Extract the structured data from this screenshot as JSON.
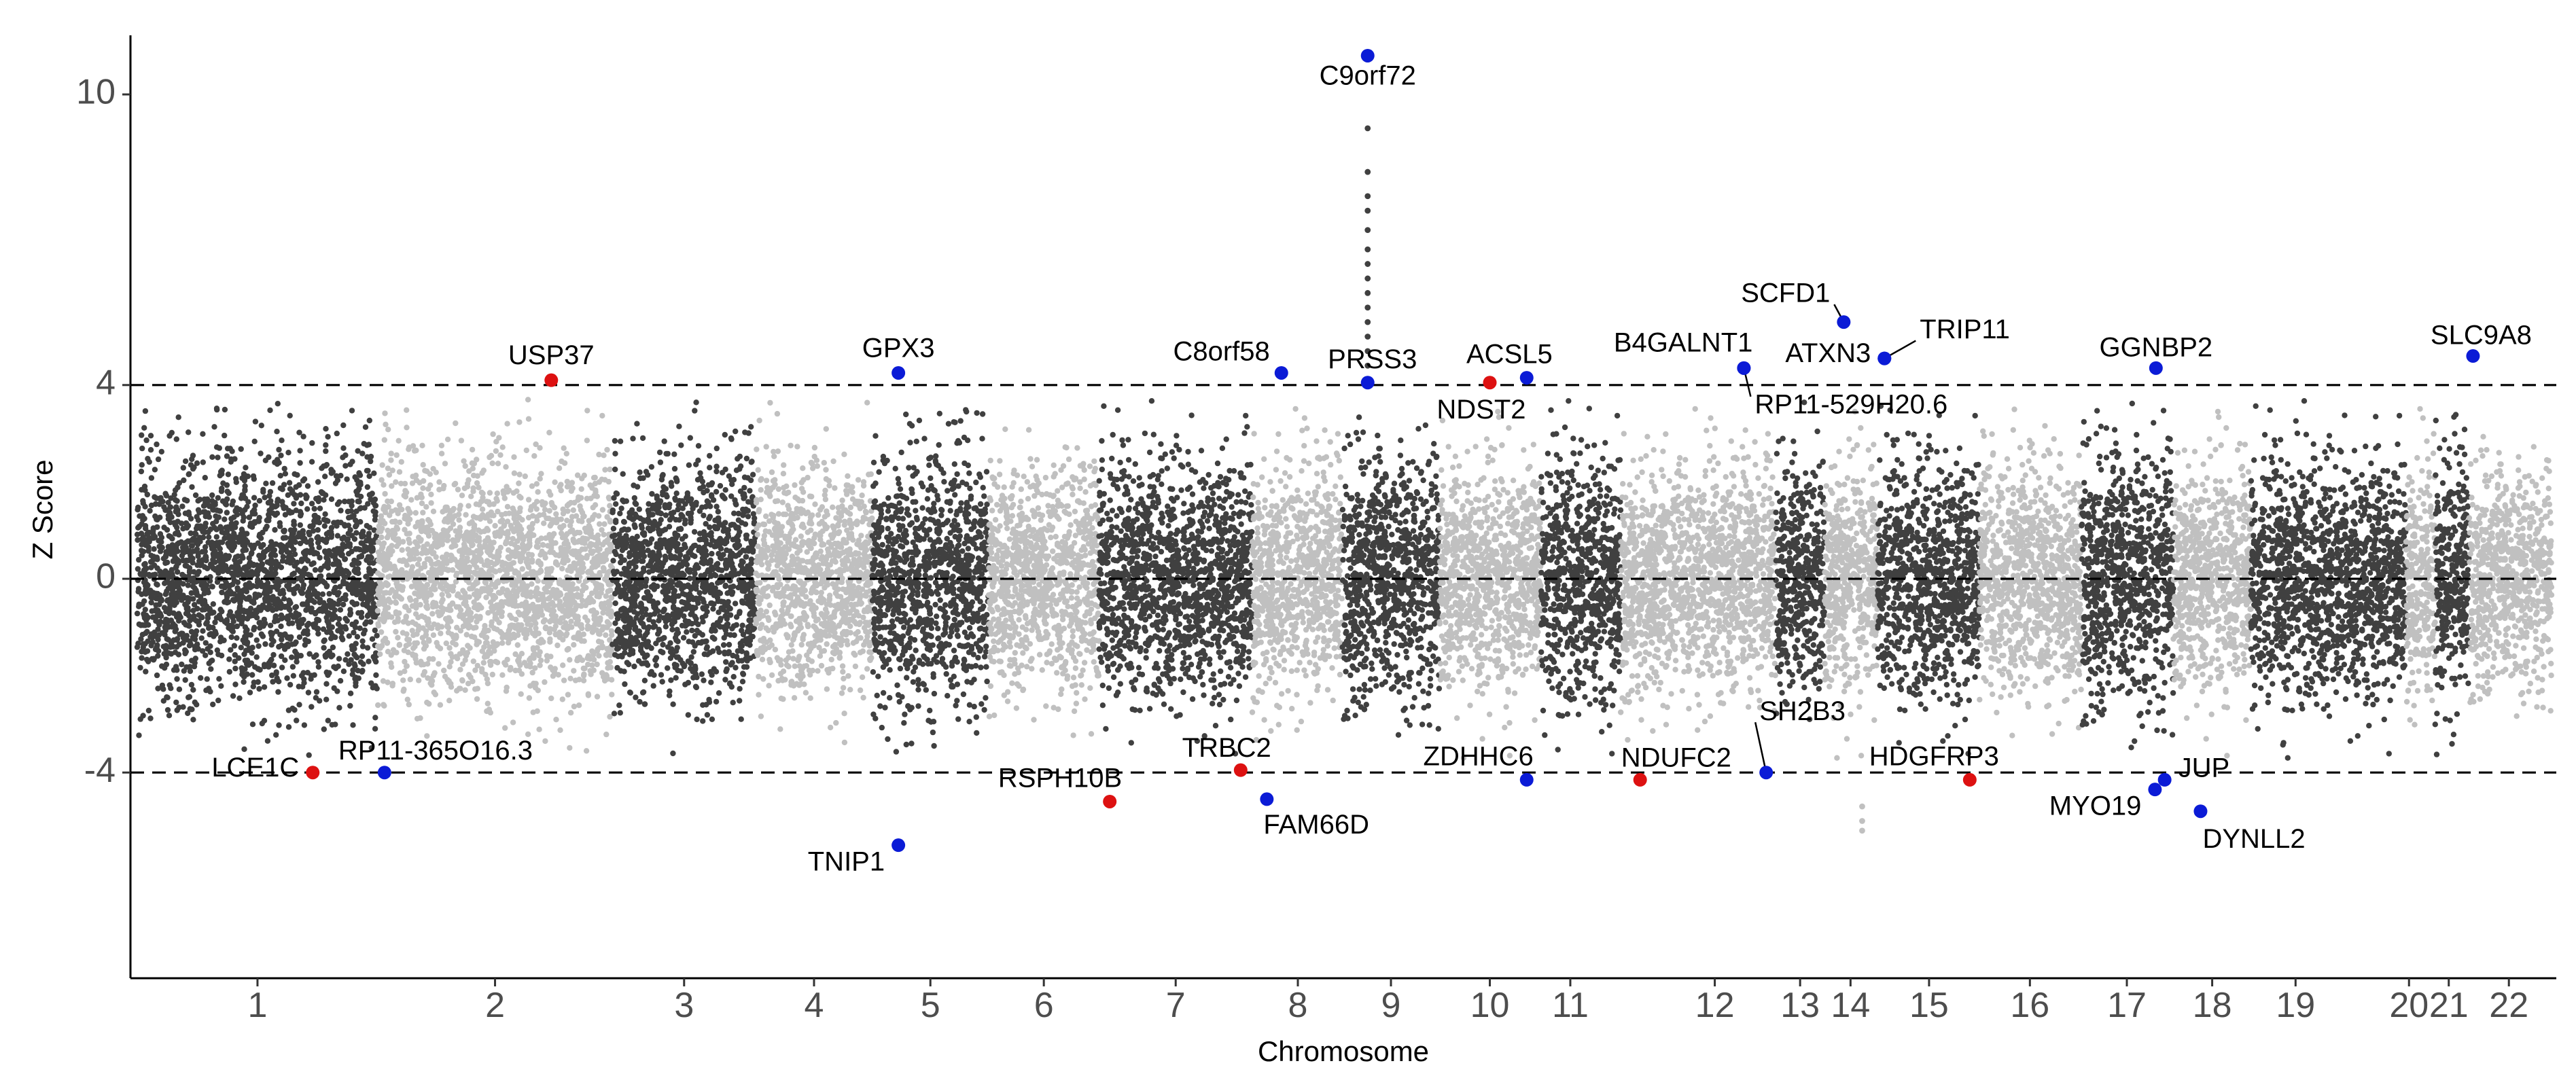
{
  "chart_data": {
    "type": "scatter",
    "subtype": "manhattan",
    "title": "",
    "xlabel": "Chromosome",
    "ylabel": "Z Score",
    "ylim": [
      -8,
      11.5
    ],
    "yticks": [
      -4,
      0,
      4,
      10
    ],
    "threshold_lines": [
      4,
      0,
      -4
    ],
    "grid": false,
    "colors": {
      "dark": "#404040",
      "light": "#c0c0c0",
      "highlight_red": "#dd1111",
      "highlight_blue": "#0b1bd6",
      "threshold": "#000000"
    },
    "chromosomes": [
      {
        "label": "1",
        "start": 0,
        "end": 248,
        "tick": 124,
        "shade": "dark",
        "spread": 1.25
      },
      {
        "label": "2",
        "start": 248,
        "end": 490,
        "tick": 369,
        "shade": "light",
        "spread": 1.15
      },
      {
        "label": "3",
        "start": 490,
        "end": 638,
        "tick": 564,
        "shade": "dark",
        "spread": 1.2
      },
      {
        "label": "4",
        "start": 638,
        "end": 758,
        "tick": 698,
        "shade": "light",
        "spread": 1.1
      },
      {
        "label": "5",
        "start": 758,
        "end": 878,
        "tick": 818,
        "shade": "dark",
        "spread": 1.25
      },
      {
        "label": "6",
        "start": 878,
        "end": 992,
        "tick": 935,
        "shade": "light",
        "spread": 1.1
      },
      {
        "label": "7",
        "start": 992,
        "end": 1150,
        "tick": 1071,
        "shade": "dark",
        "spread": 1.2
      },
      {
        "label": "8",
        "start": 1150,
        "end": 1243,
        "tick": 1197,
        "shade": "light",
        "spread": 1.1
      },
      {
        "label": "9",
        "start": 1243,
        "end": 1343,
        "tick": 1293,
        "shade": "dark",
        "spread": 1.25
      },
      {
        "label": "10",
        "start": 1343,
        "end": 1448,
        "tick": 1395,
        "shade": "light",
        "spread": 1.1
      },
      {
        "label": "11",
        "start": 1448,
        "end": 1530,
        "tick": 1478,
        "shade": "dark",
        "spread": 1.25
      },
      {
        "label": "12",
        "start": 1530,
        "end": 1690,
        "tick": 1627,
        "shade": "light",
        "spread": 1.1
      },
      {
        "label": "13",
        "start": 1690,
        "end": 1740,
        "tick": 1715,
        "shade": "dark",
        "spread": 1.2
      },
      {
        "label": "14",
        "start": 1740,
        "end": 1795,
        "tick": 1767,
        "shade": "light",
        "spread": 1.1
      },
      {
        "label": "15",
        "start": 1795,
        "end": 1900,
        "tick": 1848,
        "shade": "dark",
        "spread": 1.2
      },
      {
        "label": "16",
        "start": 1900,
        "end": 2005,
        "tick": 1952,
        "shade": "light",
        "spread": 1.1
      },
      {
        "label": "17",
        "start": 2005,
        "end": 2100,
        "tick": 2052,
        "shade": "dark",
        "spread": 1.3
      },
      {
        "label": "18",
        "start": 2100,
        "end": 2180,
        "tick": 2140,
        "shade": "light",
        "spread": 1.1
      },
      {
        "label": "19",
        "start": 2180,
        "end": 2340,
        "tick": 2226,
        "shade": "dark",
        "spread": 1.2
      },
      {
        "label": "20",
        "start": 2340,
        "end": 2370,
        "tick": 2343,
        "shade": "light",
        "spread": 1.1
      },
      {
        "label": "21",
        "start": 2370,
        "end": 2405,
        "tick": 2384,
        "shade": "dark",
        "spread": 1.2
      },
      {
        "label": "22",
        "start": 2405,
        "end": 2490,
        "tick": 2446,
        "shade": "light",
        "spread": 1.1
      }
    ],
    "column_points": [
      {
        "x": 1269,
        "y": 9.3,
        "shade": "dark"
      },
      {
        "x": 1269,
        "y": 8.4,
        "shade": "dark"
      },
      {
        "x": 1269,
        "y": 7.9,
        "shade": "dark"
      },
      {
        "x": 1269,
        "y": 7.6,
        "shade": "dark"
      },
      {
        "x": 1269,
        "y": 7.2,
        "shade": "dark"
      },
      {
        "x": 1269,
        "y": 6.8,
        "shade": "dark"
      },
      {
        "x": 1269,
        "y": 6.5,
        "shade": "dark"
      },
      {
        "x": 1269,
        "y": 6.2,
        "shade": "dark"
      },
      {
        "x": 1269,
        "y": 5.9,
        "shade": "dark"
      },
      {
        "x": 1269,
        "y": 5.6,
        "shade": "dark"
      },
      {
        "x": 1269,
        "y": 5.3,
        "shade": "dark"
      },
      {
        "x": 1269,
        "y": 5.0,
        "shade": "dark"
      },
      {
        "x": 1269,
        "y": 4.7,
        "shade": "dark"
      },
      {
        "x": 1269,
        "y": 4.4,
        "shade": "dark"
      },
      {
        "x": 1779,
        "y": -4.7,
        "shade": "light"
      },
      {
        "x": 1779,
        "y": -5.0,
        "shade": "light"
      },
      {
        "x": 1779,
        "y": -5.2,
        "shade": "light"
      }
    ],
    "highlighted_genes": [
      {
        "gene": "C9orf72",
        "x": 1269,
        "y": 10.8,
        "color": "blue",
        "anchor": "middle",
        "dx": 0,
        "dy": 32
      },
      {
        "gene": "USP37",
        "x": 427,
        "y": 4.1,
        "color": "red",
        "anchor": "middle",
        "dx": 0,
        "dy": -34
      },
      {
        "gene": "GPX3",
        "x": 785,
        "y": 4.25,
        "color": "blue",
        "anchor": "middle",
        "dx": 0,
        "dy": -34
      },
      {
        "gene": "C8orf58",
        "x": 1180,
        "y": 4.25,
        "color": "blue",
        "anchor": "end",
        "dx": -17,
        "dy": -29
      },
      {
        "gene": "PRSS3",
        "x": 1269,
        "y": 4.05,
        "color": "blue",
        "anchor": "middle",
        "dx": 7,
        "dy": -32
      },
      {
        "gene": "ACSL5",
        "x": 1433,
        "y": 4.15,
        "color": "blue",
        "anchor": "end",
        "dx": 38,
        "dy": -32
      },
      {
        "gene": "NDST2",
        "x": 1395,
        "y": 4.05,
        "color": "red",
        "anchor": "end",
        "dx": 53,
        "dy": 42
      },
      {
        "gene": "B4GALNT1",
        "x": 1657,
        "y": 4.35,
        "color": "blue",
        "anchor": "end",
        "dx": 13,
        "dy": -35
      },
      {
        "gene": "RP11-529H20.6",
        "x": 1657,
        "y": 4.35,
        "color": "blue",
        "anchor": "start",
        "dx": 16,
        "dy": 56
      },
      {
        "gene": "SCFD1",
        "x": 1760,
        "y": 5.3,
        "color": "blue",
        "anchor": "end",
        "dx": -20,
        "dy": -40
      },
      {
        "gene": "ATXN3",
        "x": 1802,
        "y": 4.55,
        "color": "blue",
        "anchor": "end",
        "dx": -20,
        "dy": -5
      },
      {
        "gene": "TRIP11",
        "x": 1802,
        "y": 4.55,
        "color": "blue",
        "anchor": "start",
        "dx": 52,
        "dy": -40
      },
      {
        "gene": "GGNBP2",
        "x": 2082,
        "y": 4.35,
        "color": "blue",
        "anchor": "middle",
        "dx": 0,
        "dy": -28
      },
      {
        "gene": "SLC9A8",
        "x": 2409,
        "y": 4.6,
        "color": "blue",
        "anchor": "middle",
        "dx": 12,
        "dy": -28
      },
      {
        "gene": "LCE1C",
        "x": 181,
        "y": -4.0,
        "color": "red",
        "anchor": "end",
        "dx": -20,
        "dy": -5
      },
      {
        "gene": "RP11-365O16.3",
        "x": 255,
        "y": -4.0,
        "color": "blue",
        "anchor": "start",
        "dx": -68,
        "dy": -30
      },
      {
        "gene": "TNIP1",
        "x": 785,
        "y": -5.5,
        "color": "blue",
        "anchor": "end",
        "dx": -20,
        "dy": 27
      },
      {
        "gene": "RSPH10B",
        "x": 1003,
        "y": -4.6,
        "color": "red",
        "anchor": "end",
        "dx": 18,
        "dy": -32
      },
      {
        "gene": "TRBC2",
        "x": 1138,
        "y": -3.95,
        "color": "red",
        "anchor": "end",
        "dx": 45,
        "dy": -30
      },
      {
        "gene": "FAM66D",
        "x": 1165,
        "y": -4.55,
        "color": "blue",
        "anchor": "start",
        "dx": -5,
        "dy": 40
      },
      {
        "gene": "ZDHHC6",
        "x": 1433,
        "y": -4.15,
        "color": "blue",
        "anchor": "end",
        "dx": 10,
        "dy": -32
      },
      {
        "gene": "NDUFC2",
        "x": 1550,
        "y": -4.15,
        "color": "red",
        "anchor": "start",
        "dx": -28,
        "dy": -30
      },
      {
        "gene": "SH2B3",
        "x": 1680,
        "y": -4.0,
        "color": "blue",
        "anchor": "start",
        "dx": -10,
        "dy": -88
      },
      {
        "gene": "HDGFRP3",
        "x": 1890,
        "y": -4.15,
        "color": "red",
        "anchor": "end",
        "dx": 43,
        "dy": -32
      },
      {
        "gene": "JUP",
        "x": 2091,
        "y": -4.15,
        "color": "blue",
        "anchor": "start",
        "dx": 20,
        "dy": -15
      },
      {
        "gene": "MYO19",
        "x": 2081,
        "y": -4.35,
        "color": "blue",
        "anchor": "end",
        "dx": -20,
        "dy": 27
      },
      {
        "gene": "DYNLL2",
        "x": 2128,
        "y": -4.8,
        "color": "blue",
        "anchor": "start",
        "dx": 3,
        "dy": 43
      }
    ],
    "leader_lines": [
      "SCFD1",
      "TRIP11",
      "RP11-529H20.6",
      "SH2B3"
    ]
  }
}
